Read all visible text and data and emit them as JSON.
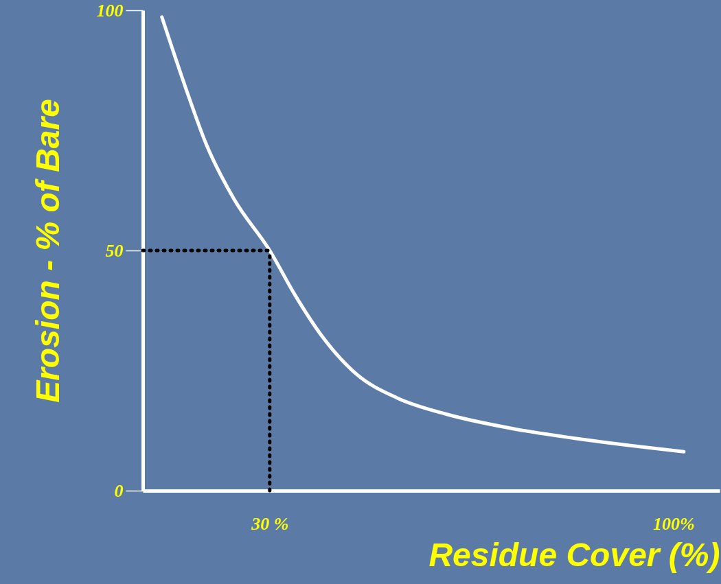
{
  "chart_data": {
    "type": "line",
    "xlabel": "Residue Cover (%)",
    "ylabel": "Erosion - % of Bare",
    "x": [
      11.3,
      15.5,
      19.0,
      23.8,
      30,
      34.4,
      39.1,
      45.0,
      52.1,
      60.4,
      72.2,
      84.0,
      101.8
    ],
    "series": [
      {
        "color": "#ffffff",
        "values": [
          98.6,
          83.6,
          72.1,
          60.7,
          50,
          40.7,
          32.1,
          24.3,
          19.3,
          16,
          12.9,
          10.7,
          8.1
        ]
      }
    ],
    "xlim": [
      8,
      108
    ],
    "ylim": [
      0,
      100
    ],
    "xticks": [
      {
        "value": 30,
        "label": "30 %"
      },
      {
        "value": 100,
        "label": "100%"
      }
    ],
    "yticks": [
      0,
      50,
      100
    ],
    "ref_lines": [
      {
        "axis": "x",
        "value": 30,
        "color": "#000000",
        "line_style": "dotted"
      },
      {
        "axis": "y",
        "value": 50,
        "color": "#000000",
        "line_style": "dotted"
      }
    ],
    "grid": false,
    "marker": "none",
    "line_style": "solid"
  }
}
